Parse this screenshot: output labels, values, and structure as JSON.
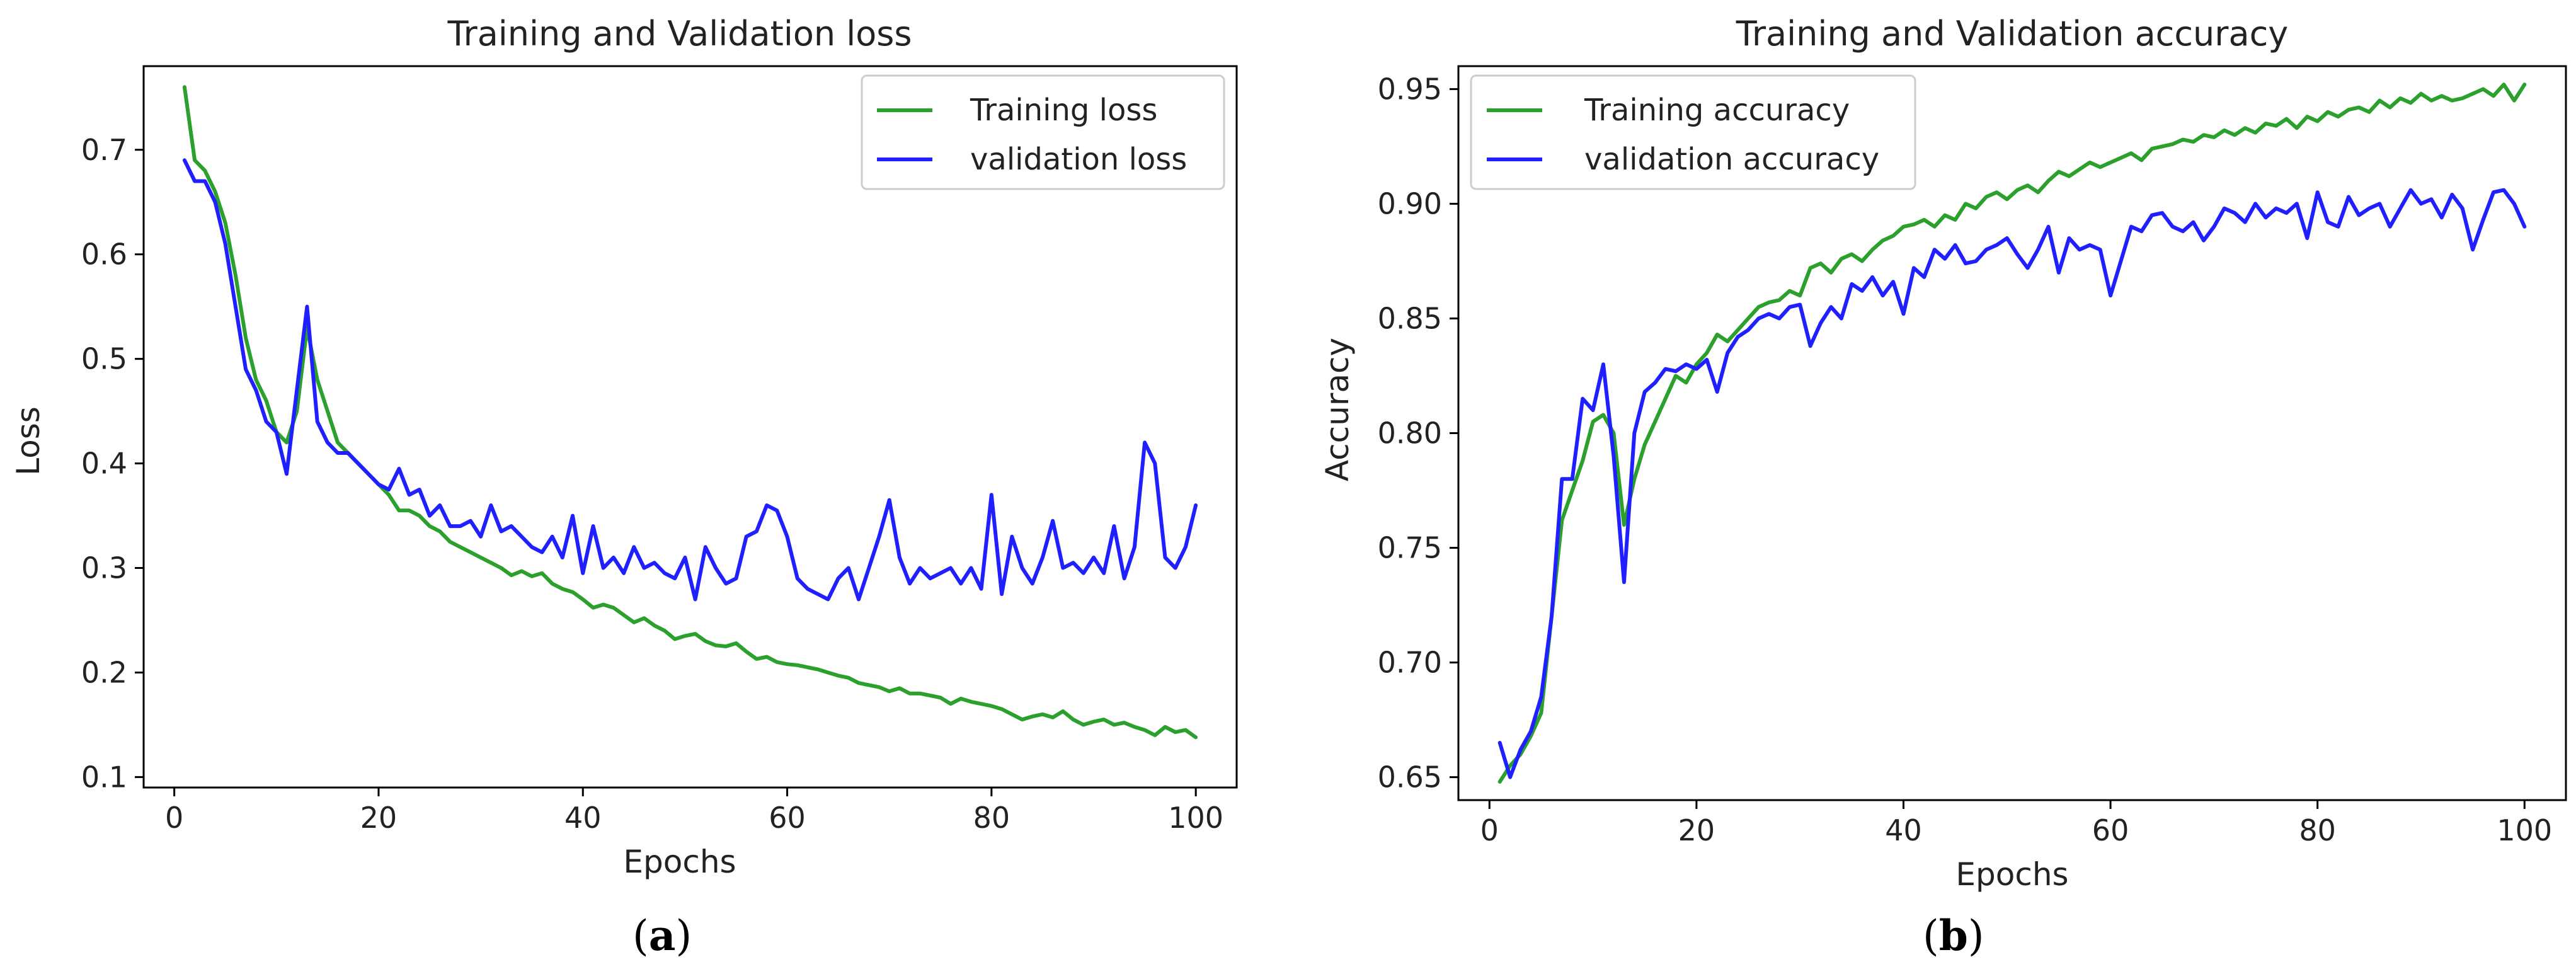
{
  "colors": {
    "training": "#2ca02c",
    "validation": "#1f1fff"
  },
  "chart_data": [
    {
      "type": "line",
      "title": "Training and Validation loss",
      "xlabel": "Epochs",
      "ylabel": "Loss",
      "caption": "a",
      "xlim": [
        -3,
        104
      ],
      "ylim": [
        0.09,
        0.78
      ],
      "xticks": [
        0,
        20,
        40,
        60,
        80,
        100
      ],
      "yticks": [
        0.1,
        0.2,
        0.3,
        0.4,
        0.5,
        0.6,
        0.7
      ],
      "ytick_labels": [
        "0.1",
        "0.2",
        "0.3",
        "0.4",
        "0.5",
        "0.6",
        "0.7"
      ],
      "legend_position": "upper right",
      "grid": false,
      "series": [
        {
          "name": "Training loss",
          "color": "#2ca02c",
          "x": [
            1,
            2,
            3,
            4,
            5,
            6,
            7,
            8,
            9,
            10,
            11,
            12,
            13,
            14,
            15,
            16,
            17,
            18,
            19,
            20,
            21,
            22,
            23,
            24,
            25,
            26,
            27,
            28,
            29,
            30,
            31,
            32,
            33,
            34,
            35,
            36,
            37,
            38,
            39,
            40,
            41,
            42,
            43,
            44,
            45,
            46,
            47,
            48,
            49,
            50,
            51,
            52,
            53,
            54,
            55,
            56,
            57,
            58,
            59,
            60,
            61,
            62,
            63,
            64,
            65,
            66,
            67,
            68,
            69,
            70,
            71,
            72,
            73,
            74,
            75,
            76,
            77,
            78,
            79,
            80,
            81,
            82,
            83,
            84,
            85,
            86,
            87,
            88,
            89,
            90,
            91,
            92,
            93,
            94,
            95,
            96,
            97,
            98,
            99,
            100
          ],
          "values": [
            0.76,
            0.69,
            0.68,
            0.66,
            0.63,
            0.58,
            0.52,
            0.48,
            0.46,
            0.43,
            0.42,
            0.45,
            0.53,
            0.48,
            0.45,
            0.42,
            0.41,
            0.4,
            0.39,
            0.38,
            0.37,
            0.355,
            0.355,
            0.35,
            0.34,
            0.335,
            0.325,
            0.32,
            0.315,
            0.31,
            0.305,
            0.3,
            0.293,
            0.297,
            0.292,
            0.295,
            0.285,
            0.28,
            0.277,
            0.27,
            0.262,
            0.265,
            0.262,
            0.255,
            0.248,
            0.252,
            0.245,
            0.24,
            0.232,
            0.235,
            0.237,
            0.23,
            0.226,
            0.225,
            0.228,
            0.22,
            0.213,
            0.215,
            0.21,
            0.208,
            0.207,
            0.205,
            0.203,
            0.2,
            0.197,
            0.195,
            0.19,
            0.188,
            0.186,
            0.182,
            0.185,
            0.18,
            0.18,
            0.178,
            0.176,
            0.17,
            0.175,
            0.172,
            0.17,
            0.168,
            0.165,
            0.16,
            0.155,
            0.158,
            0.16,
            0.157,
            0.163,
            0.155,
            0.15,
            0.153,
            0.155,
            0.15,
            0.152,
            0.148,
            0.145,
            0.14,
            0.148,
            0.143,
            0.145,
            0.138
          ]
        },
        {
          "name": "validation loss",
          "color": "#1f1fff",
          "x": [
            1,
            2,
            3,
            4,
            5,
            6,
            7,
            8,
            9,
            10,
            11,
            12,
            13,
            14,
            15,
            16,
            17,
            18,
            19,
            20,
            21,
            22,
            23,
            24,
            25,
            26,
            27,
            28,
            29,
            30,
            31,
            32,
            33,
            34,
            35,
            36,
            37,
            38,
            39,
            40,
            41,
            42,
            43,
            44,
            45,
            46,
            47,
            48,
            49,
            50,
            51,
            52,
            53,
            54,
            55,
            56,
            57,
            58,
            59,
            60,
            61,
            62,
            63,
            64,
            65,
            66,
            67,
            68,
            69,
            70,
            71,
            72,
            73,
            74,
            75,
            76,
            77,
            78,
            79,
            80,
            81,
            82,
            83,
            84,
            85,
            86,
            87,
            88,
            89,
            90,
            91,
            92,
            93,
            94,
            95,
            96,
            97,
            98,
            99,
            100
          ],
          "values": [
            0.69,
            0.67,
            0.67,
            0.65,
            0.61,
            0.55,
            0.49,
            0.47,
            0.44,
            0.43,
            0.39,
            0.47,
            0.55,
            0.44,
            0.42,
            0.41,
            0.41,
            0.4,
            0.39,
            0.38,
            0.375,
            0.395,
            0.37,
            0.375,
            0.35,
            0.36,
            0.34,
            0.34,
            0.345,
            0.33,
            0.36,
            0.335,
            0.34,
            0.33,
            0.32,
            0.315,
            0.33,
            0.31,
            0.35,
            0.295,
            0.34,
            0.3,
            0.31,
            0.295,
            0.32,
            0.3,
            0.305,
            0.295,
            0.29,
            0.31,
            0.27,
            0.32,
            0.3,
            0.285,
            0.29,
            0.33,
            0.335,
            0.36,
            0.355,
            0.33,
            0.29,
            0.28,
            0.275,
            0.27,
            0.29,
            0.3,
            0.27,
            0.3,
            0.33,
            0.365,
            0.31,
            0.285,
            0.3,
            0.29,
            0.295,
            0.3,
            0.285,
            0.3,
            0.28,
            0.37,
            0.275,
            0.33,
            0.3,
            0.285,
            0.31,
            0.345,
            0.3,
            0.305,
            0.295,
            0.31,
            0.295,
            0.34,
            0.29,
            0.32,
            0.42,
            0.4,
            0.31,
            0.3,
            0.32,
            0.36
          ]
        }
      ]
    },
    {
      "type": "line",
      "title": "Training and Validation accuracy",
      "xlabel": "Epochs",
      "ylabel": "Accuracy",
      "caption": "b",
      "xlim": [
        -3,
        104
      ],
      "ylim": [
        0.64,
        0.96
      ],
      "xticks": [
        0,
        20,
        40,
        60,
        80,
        100
      ],
      "yticks": [
        0.65,
        0.7,
        0.75,
        0.8,
        0.85,
        0.9,
        0.95
      ],
      "ytick_labels": [
        "0.65",
        "0.70",
        "0.75",
        "0.80",
        "0.85",
        "0.90",
        "0.95"
      ],
      "legend_position": "upper left",
      "grid": false,
      "series": [
        {
          "name": "Training accuracy",
          "color": "#2ca02c",
          "x": [
            1,
            2,
            3,
            4,
            5,
            6,
            7,
            8,
            9,
            10,
            11,
            12,
            13,
            14,
            15,
            16,
            17,
            18,
            19,
            20,
            21,
            22,
            23,
            24,
            25,
            26,
            27,
            28,
            29,
            30,
            31,
            32,
            33,
            34,
            35,
            36,
            37,
            38,
            39,
            40,
            41,
            42,
            43,
            44,
            45,
            46,
            47,
            48,
            49,
            50,
            51,
            52,
            53,
            54,
            55,
            56,
            57,
            58,
            59,
            60,
            61,
            62,
            63,
            64,
            65,
            66,
            67,
            68,
            69,
            70,
            71,
            72,
            73,
            74,
            75,
            76,
            77,
            78,
            79,
            80,
            81,
            82,
            83,
            84,
            85,
            86,
            87,
            88,
            89,
            90,
            91,
            92,
            93,
            94,
            95,
            96,
            97,
            98,
            99,
            100
          ],
          "values": [
            0.648,
            0.655,
            0.66,
            0.668,
            0.678,
            0.72,
            0.762,
            0.775,
            0.788,
            0.805,
            0.808,
            0.8,
            0.76,
            0.78,
            0.795,
            0.805,
            0.815,
            0.825,
            0.822,
            0.83,
            0.835,
            0.843,
            0.84,
            0.845,
            0.85,
            0.855,
            0.857,
            0.858,
            0.862,
            0.86,
            0.872,
            0.874,
            0.87,
            0.876,
            0.878,
            0.875,
            0.88,
            0.884,
            0.886,
            0.89,
            0.891,
            0.893,
            0.89,
            0.895,
            0.893,
            0.9,
            0.898,
            0.903,
            0.905,
            0.902,
            0.906,
            0.908,
            0.905,
            0.91,
            0.914,
            0.912,
            0.915,
            0.918,
            0.916,
            0.918,
            0.92,
            0.922,
            0.919,
            0.924,
            0.925,
            0.926,
            0.928,
            0.927,
            0.93,
            0.929,
            0.932,
            0.93,
            0.933,
            0.931,
            0.935,
            0.934,
            0.937,
            0.933,
            0.938,
            0.936,
            0.94,
            0.938,
            0.941,
            0.942,
            0.94,
            0.945,
            0.942,
            0.946,
            0.944,
            0.948,
            0.945,
            0.947,
            0.945,
            0.946,
            0.948,
            0.95,
            0.947,
            0.952,
            0.945,
            0.952
          ]
        },
        {
          "name": "validation accuracy",
          "color": "#1f1fff",
          "x": [
            1,
            2,
            3,
            4,
            5,
            6,
            7,
            8,
            9,
            10,
            11,
            12,
            13,
            14,
            15,
            16,
            17,
            18,
            19,
            20,
            21,
            22,
            23,
            24,
            25,
            26,
            27,
            28,
            29,
            30,
            31,
            32,
            33,
            34,
            35,
            36,
            37,
            38,
            39,
            40,
            41,
            42,
            43,
            44,
            45,
            46,
            47,
            48,
            49,
            50,
            51,
            52,
            53,
            54,
            55,
            56,
            57,
            58,
            59,
            60,
            61,
            62,
            63,
            64,
            65,
            66,
            67,
            68,
            69,
            70,
            71,
            72,
            73,
            74,
            75,
            76,
            77,
            78,
            79,
            80,
            81,
            82,
            83,
            84,
            85,
            86,
            87,
            88,
            89,
            90,
            91,
            92,
            93,
            94,
            95,
            96,
            97,
            98,
            99,
            100
          ],
          "values": [
            0.665,
            0.65,
            0.662,
            0.67,
            0.685,
            0.72,
            0.78,
            0.78,
            0.815,
            0.81,
            0.83,
            0.79,
            0.735,
            0.8,
            0.818,
            0.822,
            0.828,
            0.827,
            0.83,
            0.828,
            0.832,
            0.818,
            0.835,
            0.842,
            0.845,
            0.85,
            0.852,
            0.85,
            0.855,
            0.856,
            0.838,
            0.848,
            0.855,
            0.85,
            0.865,
            0.862,
            0.868,
            0.86,
            0.866,
            0.852,
            0.872,
            0.868,
            0.88,
            0.876,
            0.882,
            0.874,
            0.875,
            0.88,
            0.882,
            0.885,
            0.878,
            0.872,
            0.88,
            0.89,
            0.87,
            0.885,
            0.88,
            0.882,
            0.88,
            0.86,
            0.875,
            0.89,
            0.888,
            0.895,
            0.896,
            0.89,
            0.888,
            0.892,
            0.884,
            0.89,
            0.898,
            0.896,
            0.892,
            0.9,
            0.894,
            0.898,
            0.896,
            0.9,
            0.885,
            0.905,
            0.892,
            0.89,
            0.903,
            0.895,
            0.898,
            0.9,
            0.89,
            0.898,
            0.906,
            0.9,
            0.902,
            0.894,
            0.904,
            0.898,
            0.88,
            0.893,
            0.905,
            0.906,
            0.9,
            0.89
          ]
        }
      ]
    }
  ]
}
